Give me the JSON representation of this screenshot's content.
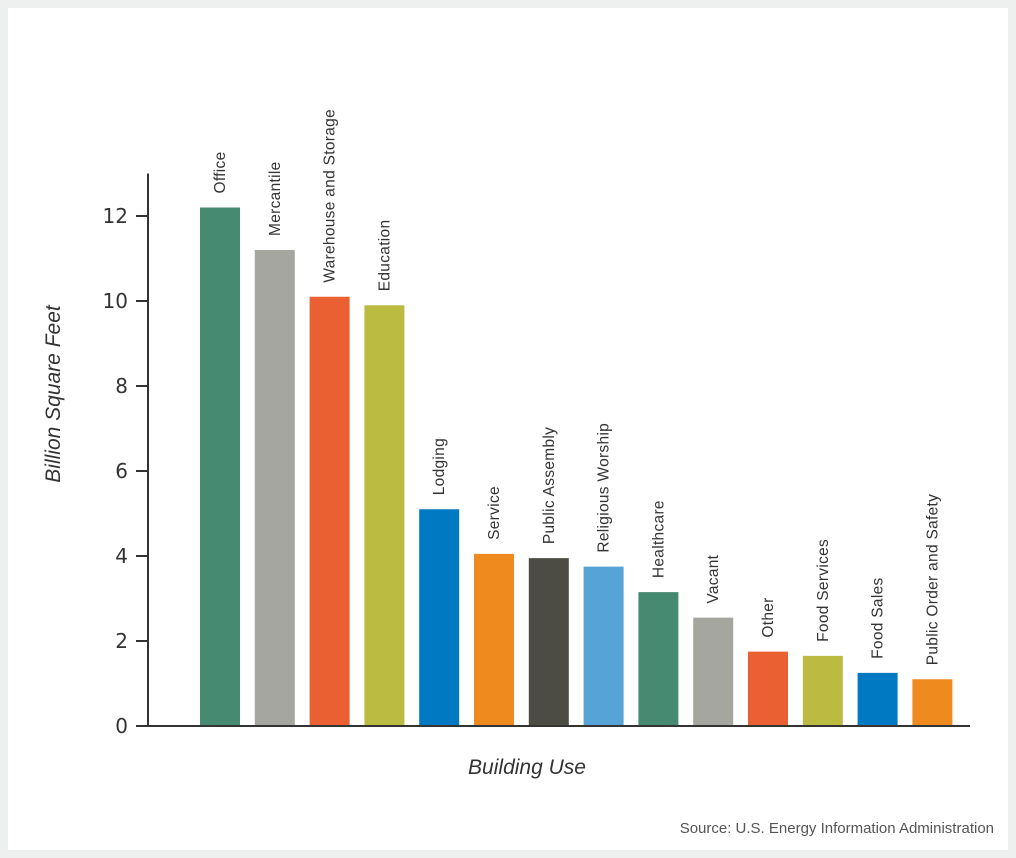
{
  "chart_data": {
    "type": "bar",
    "title": "",
    "xlabel": "Building Use",
    "ylabel": "Billion Square Feet",
    "ylim": [
      0,
      13
    ],
    "yticks": [
      "0",
      "2",
      "4",
      "6",
      "8",
      "10",
      "12"
    ],
    "grid": false,
    "legend": "none",
    "categories": [
      "Office",
      "Mercantile",
      "Warehouse and Storage",
      "Education",
      "Lodging",
      "Service",
      "Public Assembly",
      "Religious Worship",
      "Healthcare",
      "Vacant",
      "Other",
      "Food Services",
      "Food Sales",
      "Public Order and Safety"
    ],
    "values": [
      12.2,
      11.2,
      10.1,
      9.9,
      5.1,
      4.05,
      3.95,
      3.75,
      3.15,
      2.55,
      1.75,
      1.65,
      1.25,
      1.1
    ],
    "colors": [
      "#478a72",
      "#a4a69f",
      "#ea6033",
      "#bbbb41",
      "#0079c2",
      "#ef8a1f",
      "#4c4c44",
      "#55a4d5",
      "#478a72",
      "#a4a69f",
      "#ea6033",
      "#bbbb41",
      "#0079c2",
      "#ef8a1f"
    ],
    "source": "Source: U.S. Energy Information Administration"
  }
}
